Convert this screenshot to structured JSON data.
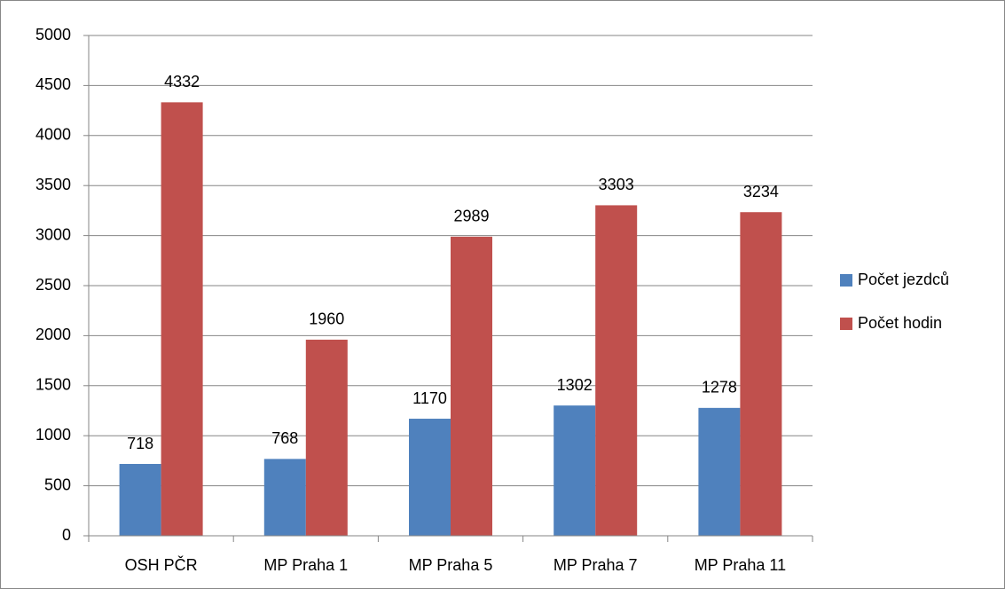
{
  "chart_data": {
    "type": "bar",
    "categories": [
      "OSH PČR",
      "MP Praha 1",
      "MP Praha 5",
      "MP Praha 7",
      "MP Praha 11"
    ],
    "series": [
      {
        "name": "Počet jezdců",
        "color": "#4f81bd",
        "values": [
          718,
          768,
          1170,
          1302,
          1278
        ]
      },
      {
        "name": "Počet hodin",
        "color": "#c0504d",
        "values": [
          4332,
          1960,
          2989,
          3303,
          3234
        ]
      }
    ],
    "ylim": [
      0,
      5000
    ],
    "yticks": [
      0,
      500,
      1000,
      1500,
      2000,
      2500,
      3000,
      3500,
      4000,
      4500,
      5000
    ],
    "grid": true,
    "legend": "right",
    "data_labels": true
  }
}
